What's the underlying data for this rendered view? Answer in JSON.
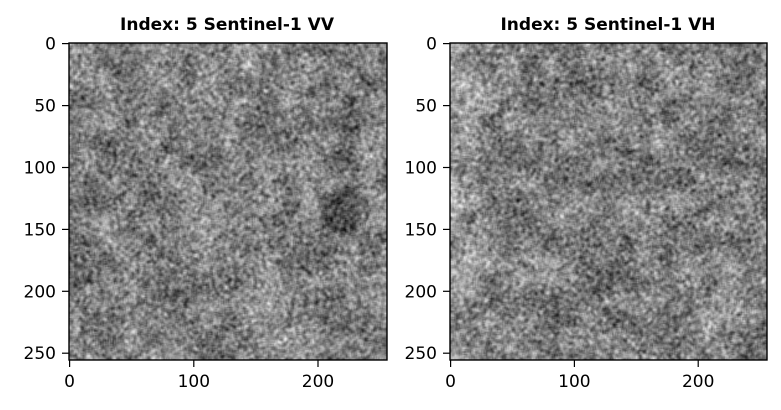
{
  "panels": [
    {
      "title": "Index: 5 Sentinel-1 VV",
      "x_ticks": [
        "0",
        "100",
        "200"
      ],
      "y_ticks": [
        "0",
        "50",
        "100",
        "150",
        "200",
        "250"
      ],
      "image_size": 256,
      "colormap": "gray",
      "seed": 5
    },
    {
      "title": "Index: 5 Sentinel-1 VH",
      "x_ticks": [
        "0",
        "100",
        "200"
      ],
      "y_ticks": [
        "0",
        "50",
        "100",
        "150",
        "200",
        "250"
      ],
      "image_size": 256,
      "colormap": "gray",
      "seed": 11
    }
  ],
  "colors": {
    "background": "#ffffff",
    "axis": "#000000"
  }
}
